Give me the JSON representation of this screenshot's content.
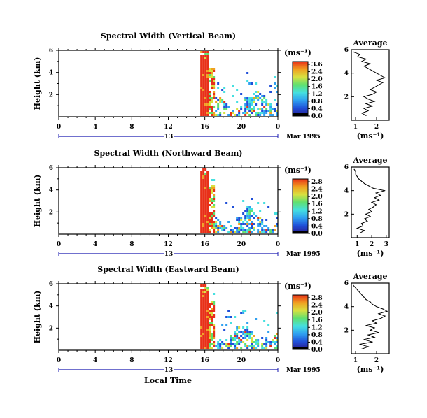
{
  "panels": [
    {
      "title": "Spectral Width (Vertical Beam)",
      "units": "(ms⁻¹)",
      "colorbar_ticks": [
        "3.6",
        "2.4",
        "2.0",
        "1.6",
        "1.2",
        "0.8",
        "0.4",
        "0.0"
      ],
      "avg_title": "Average",
      "avg_xticks": [
        "1",
        "2"
      ],
      "avg_xlim": [
        0.8,
        2.6
      ],
      "avg_xlabel": "(ms⁻¹)"
    },
    {
      "title": "Spectral Width (Northward Beam)",
      "units": "(ms⁻¹)",
      "colorbar_ticks": [
        "2.8",
        "2.4",
        "2.0",
        "1.6",
        "1.2",
        "0.8",
        "0.4",
        "0.0"
      ],
      "avg_title": "Average",
      "avg_xticks": [
        "1",
        "2",
        "3"
      ],
      "avg_xlim": [
        0.6,
        3.2
      ],
      "avg_xlabel": "(ms⁻¹)"
    },
    {
      "title": "Spectral Width (Eastward Beam)",
      "units": "(ms⁻¹)",
      "colorbar_ticks": [
        "2.8",
        "2.4",
        "2.0",
        "1.6",
        "1.2",
        "0.8",
        "0.4",
        "0.0"
      ],
      "avg_title": "Average",
      "avg_xticks": [
        "1",
        "2"
      ],
      "avg_xlim": [
        0.8,
        2.6
      ],
      "avg_xlabel": "(ms⁻¹)"
    }
  ],
  "shared": {
    "ylabel": "Height (km)",
    "yticks": [
      "6",
      "4",
      "2"
    ],
    "xticks": [
      "0",
      "4",
      "8",
      "12",
      "16",
      "20",
      "0"
    ],
    "day_label": "13",
    "date_label": "Mar 1995",
    "bottom_xlabel": "Local Time"
  },
  "colors": {
    "scale": [
      "#2a1a8c",
      "#1f4fd8",
      "#2fa0f0",
      "#45e0e0",
      "#5fe070",
      "#d8e040",
      "#f0a020",
      "#e83018"
    ],
    "axis": "#000000",
    "day_line": "#1a1ab0"
  },
  "chart_data": [
    {
      "type": "heatmap",
      "title": "Spectral Width (Vertical Beam)",
      "ylabel": "Height (km)",
      "xlim": [
        0,
        24
      ],
      "ylim": [
        0,
        6
      ],
      "data_start_hour": 15.5,
      "profile": {
        "type": "line",
        "title": "Average",
        "heights": [
          0.4,
          0.6,
          0.8,
          1.0,
          1.2,
          1.4,
          1.6,
          1.8,
          2.0,
          2.2,
          2.4,
          2.6,
          2.8,
          3.0,
          3.2,
          3.4,
          3.6,
          3.8,
          4.0,
          4.2,
          4.4,
          4.6,
          4.8,
          5.0,
          5.2,
          5.4,
          5.6,
          5.8
        ],
        "values": [
          1.5,
          1.3,
          1.6,
          1.4,
          1.8,
          1.5,
          1.9,
          1.6,
          1.4,
          1.8,
          2.0,
          1.7,
          1.9,
          2.1,
          2.3,
          2.0,
          2.4,
          2.2,
          2.0,
          1.8,
          1.6,
          1.4,
          1.7,
          1.3,
          1.5,
          1.1,
          1.2,
          0.9
        ]
      }
    },
    {
      "type": "heatmap",
      "title": "Spectral Width (Northward Beam)",
      "ylabel": "Height (km)",
      "xlim": [
        0,
        24
      ],
      "ylim": [
        0,
        6
      ],
      "data_start_hour": 15.5,
      "profile": {
        "type": "line",
        "title": "Average",
        "heights": [
          0.4,
          0.6,
          0.8,
          1.0,
          1.2,
          1.4,
          1.6,
          1.8,
          2.0,
          2.2,
          2.4,
          2.6,
          2.8,
          3.0,
          3.2,
          3.4,
          3.6,
          3.8,
          4.0,
          4.2,
          4.4,
          4.6,
          4.8,
          5.0,
          5.2,
          5.4,
          5.6,
          5.8
        ],
        "values": [
          1.2,
          1.5,
          1.0,
          1.4,
          1.3,
          1.7,
          1.5,
          1.9,
          1.6,
          2.0,
          1.8,
          2.1,
          2.3,
          2.0,
          2.5,
          2.2,
          2.6,
          2.3,
          2.9,
          2.1,
          1.8,
          1.5,
          1.3,
          1.1,
          1.0,
          0.9,
          0.9,
          0.8
        ]
      }
    },
    {
      "type": "heatmap",
      "title": "Spectral Width (Eastward Beam)",
      "ylabel": "Height (km)",
      "xlim": [
        0,
        24
      ],
      "ylim": [
        0,
        6
      ],
      "data_start_hour": 15.5,
      "profile": {
        "type": "line",
        "title": "Average",
        "heights": [
          0.4,
          0.6,
          0.8,
          1.0,
          1.2,
          1.4,
          1.6,
          1.8,
          2.0,
          2.2,
          2.4,
          2.6,
          2.8,
          3.0,
          3.2,
          3.4,
          3.6,
          3.8,
          4.0,
          4.2,
          4.4,
          4.6,
          4.8,
          5.0,
          5.2,
          5.4,
          5.6,
          5.8
        ],
        "values": [
          1.3,
          1.6,
          1.2,
          1.8,
          1.4,
          1.9,
          1.6,
          2.1,
          1.7,
          1.9,
          1.5,
          2.0,
          1.8,
          2.2,
          2.4,
          2.1,
          2.5,
          2.3,
          2.0,
          1.8,
          1.7,
          1.5,
          1.4,
          1.3,
          1.2,
          1.1,
          1.0,
          0.9
        ]
      }
    }
  ]
}
